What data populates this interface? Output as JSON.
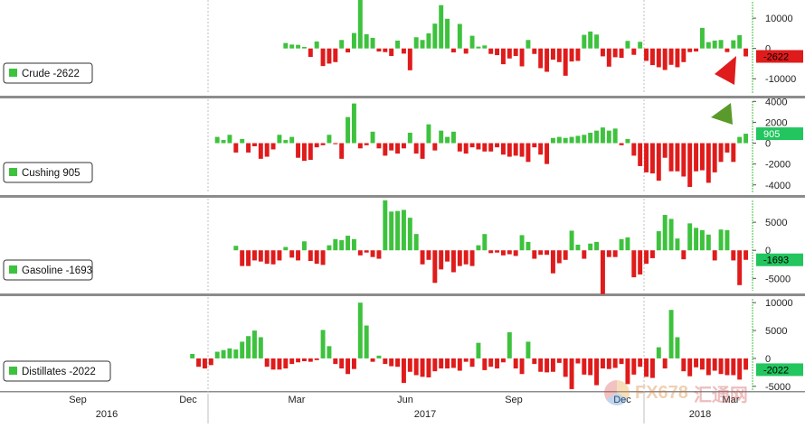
{
  "colors": {
    "up": "#3ec23e",
    "down": "#e01b1b",
    "separator": "#8c8c8c",
    "grid": "#bfbfbf",
    "tag_green": "#22c55e"
  },
  "watermark": {
    "text": "FX678",
    "text2": "汇通网",
    "icon": "fx678-logo-icon"
  },
  "chart_data": [
    {
      "type": "bar",
      "title": "Crude",
      "legend": "Crude -2622",
      "last_value_label": "-2622",
      "last_tag_color": "#e01b1b",
      "arrow": "down",
      "ylim": [
        -15000,
        16000
      ],
      "yticks": [
        10000,
        0,
        -10000
      ],
      "ytick_labels": [
        "10000",
        "0",
        "-10000"
      ],
      "values": [
        1800,
        1300,
        1200,
        500,
        -2800,
        2300,
        -5800,
        -5000,
        -4500,
        2800,
        -1300,
        5100,
        16000,
        4700,
        3500,
        -1000,
        -1200,
        -2500,
        2600,
        -1700,
        -7200,
        3700,
        2800,
        5000,
        8200,
        14300,
        9800,
        -1300,
        8100,
        -1700,
        4200,
        600,
        1000,
        -1800,
        -2200,
        -5200,
        -3300,
        -2500,
        -5900,
        2800,
        -1800,
        -6500,
        -7700,
        -3700,
        -4500,
        -9000,
        -4300,
        -4100,
        4500,
        5600,
        4600,
        -2600,
        -6000,
        -2900,
        -3100,
        2500,
        -2100,
        2200,
        -4100,
        -5500,
        -6200,
        -7100,
        -5400,
        -6200,
        -4500,
        -1200,
        -1000,
        6800,
        2100,
        2600,
        2800,
        -1200,
        2700,
        4400,
        -2622
      ]
    },
    {
      "type": "bar",
      "title": "Cushing",
      "legend": "Cushing 905",
      "last_value_label": "905",
      "last_tag_color": "#22c55e",
      "arrow": "up",
      "ylim": [
        -4800,
        4200
      ],
      "yticks": [
        4000,
        2000,
        0,
        -2000,
        -4000
      ],
      "ytick_labels": [
        "4000",
        "2000",
        "0",
        "-2000",
        "-4000"
      ],
      "values": [
        600,
        300,
        800,
        -900,
        400,
        -900,
        -300,
        -1500,
        -1300,
        -600,
        800,
        300,
        600,
        -1400,
        -1700,
        -1600,
        -400,
        -200,
        800,
        -100,
        -1500,
        2500,
        3800,
        -500,
        -200,
        1100,
        -500,
        -1200,
        -700,
        -1000,
        -500,
        1000,
        -1000,
        -1500,
        1800,
        -700,
        1200,
        600,
        1100,
        -800,
        -1000,
        -400,
        -600,
        -800,
        -800,
        -400,
        -1100,
        -1300,
        -1200,
        -1300,
        -1800,
        -400,
        -1100,
        -2000,
        500,
        600,
        500,
        600,
        700,
        800,
        1000,
        1200,
        1500,
        1200,
        1400,
        -200,
        400,
        -1200,
        -2200,
        -2800,
        -2900,
        -3600,
        -1400,
        -2700,
        -2700,
        -3200,
        -4200,
        -2700,
        -2600,
        -3800,
        -2800,
        -1800,
        -900,
        -1800,
        600,
        905
      ]
    },
    {
      "type": "bar",
      "title": "Gasoline",
      "legend": "Gasoline -1693",
      "last_value_label": "-1693",
      "last_tag_color": "#22c55e",
      "ylim": [
        -7200,
        9200
      ],
      "yticks": [
        5000,
        0,
        -5000
      ],
      "ytick_labels": [
        "5000",
        "0",
        "-5000"
      ],
      "values": [
        800,
        -2800,
        -2800,
        -1800,
        -2000,
        -2400,
        -2500,
        -1800,
        600,
        -1300,
        -1800,
        1600,
        -1900,
        -2400,
        -2600,
        900,
        2000,
        1800,
        2600,
        2000,
        -900,
        -400,
        -1200,
        -1500,
        8900,
        6900,
        7000,
        7200,
        5800,
        2900,
        -2500,
        -1700,
        -5800,
        -3400,
        -2000,
        -3900,
        -2800,
        -2500,
        -2800,
        900,
        2900,
        -500,
        -400,
        -900,
        -700,
        -1000,
        2700,
        1500,
        -1500,
        -800,
        -800,
        -4100,
        -2300,
        -1700,
        3500,
        1000,
        -1500,
        1200,
        1500,
        -7800,
        -1200,
        -1200,
        2000,
        2300,
        -4800,
        -4300,
        -2400,
        -1400,
        3400,
        6300,
        5600,
        2100,
        -1600,
        4800,
        4000,
        3600,
        2800,
        -1800,
        3700,
        3600,
        -1800,
        -6200,
        -1693
      ]
    },
    {
      "type": "bar",
      "title": "Distillates",
      "legend": "Distillates -2022",
      "last_value_label": "-2022",
      "last_tag_color": "#22c55e",
      "ylim": [
        -6000,
        11000
      ],
      "yticks": [
        10000,
        5000,
        0,
        -5000
      ],
      "ytick_labels": [
        "10000",
        "5000",
        "0",
        "-5000"
      ],
      "values": [
        800,
        -1500,
        -1800,
        -1200,
        1200,
        1500,
        1800,
        1600,
        3000,
        4000,
        5000,
        3800,
        -1500,
        -2000,
        -2000,
        -1800,
        -1000,
        -700,
        -500,
        -600,
        -300,
        5100,
        2200,
        -1000,
        -1800,
        -2800,
        -1900,
        10000,
        5900,
        -600,
        500,
        -1000,
        -1400,
        -1500,
        -4400,
        -2400,
        -3000,
        -3300,
        -3400,
        -2300,
        -1800,
        -1800,
        -1700,
        -2200,
        -600,
        -1500,
        2800,
        -2100,
        -1500,
        -1800,
        -700,
        4700,
        -1800,
        -2800,
        3000,
        -1000,
        -2400,
        -2500,
        -2400,
        -800,
        -3300,
        -5500,
        -900,
        -2900,
        -3000,
        -4800,
        -1800,
        -1900,
        -1700,
        -1000,
        -4600,
        -2900,
        -1500,
        -3300,
        -3500,
        2000,
        -1800,
        8700,
        3800,
        -2300,
        -3200,
        -1600,
        -2000,
        -3000,
        -2200,
        -2800,
        -3000,
        -3000,
        -3800,
        -2022
      ]
    }
  ],
  "x_axis": {
    "month_labels": [
      "Sep",
      "Dec",
      "Mar",
      "Jun",
      "Sep",
      "Dec",
      "Mar"
    ],
    "year_labels": [
      "2016",
      "2017",
      "2018"
    ]
  }
}
